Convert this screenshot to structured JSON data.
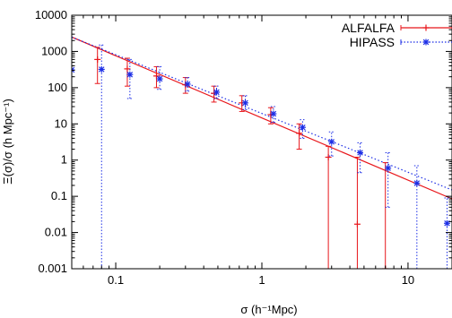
{
  "chart_data": {
    "type": "scatter",
    "title": "",
    "xlabel": "σ (h⁻¹Mpc)",
    "ylabel": "Ξ(σ)/σ (h Mpc⁻¹)",
    "xscale": "log",
    "yscale": "log",
    "xlim": [
      0.05,
      20
    ],
    "ylim": [
      0.001,
      10000
    ],
    "grid": false,
    "legend_position": "top-right",
    "x_tick_labels": [
      "0.1",
      "1",
      "10"
    ],
    "y_tick_labels": [
      "0.001",
      "0.01",
      "0.1",
      "1",
      "10",
      "100",
      "1000",
      "10000"
    ],
    "series": [
      {
        "name": "ALFALFA",
        "color": "#e8161b",
        "linestyle": "solid",
        "marker": "plus",
        "x": [
          0.075,
          0.12,
          0.19,
          0.3,
          0.47,
          0.73,
          1.15,
          1.8,
          2.85,
          4.5,
          7.0
        ],
        "y": [
          600,
          330,
          210,
          120,
          70,
          38,
          18,
          5.5,
          1.2,
          0.017,
          0.001
        ],
        "yerr_low": [
          130,
          110,
          100,
          70,
          40,
          22,
          10,
          2,
          0.001,
          0.001,
          0.001
        ],
        "yerr_high": [
          1300,
          650,
          380,
          190,
          110,
          60,
          28,
          10,
          2.4,
          1.2,
          0.85
        ]
      },
      {
        "name": "HIPASS",
        "color": "#1c2ee6",
        "linestyle": "dotted",
        "marker": "asterisk",
        "x": [
          0.05,
          0.08,
          0.125,
          0.2,
          0.31,
          0.49,
          0.77,
          1.2,
          1.9,
          3.0,
          4.7,
          7.3,
          11.5,
          18.5
        ],
        "y": [
          310,
          320,
          230,
          175,
          125,
          75,
          38,
          19,
          8,
          3.2,
          1.6,
          0.6,
          0.23,
          0.018
        ],
        "yerr_low": [
          0.001,
          0.001,
          50,
          90,
          80,
          50,
          25,
          11,
          4,
          1.3,
          0.45,
          0.05,
          0.001,
          0.001
        ],
        "yerr_high": [
          0,
          1500,
          600,
          380,
          190,
          110,
          60,
          30,
          13,
          6,
          3,
          1.6,
          0.7,
          0.09
        ]
      }
    ],
    "fits": [
      {
        "series": "ALFALFA",
        "color": "#e8161b",
        "linestyle": "solid",
        "x": [
          0.05,
          20
        ],
        "y": [
          2500,
          0.085
        ]
      },
      {
        "series": "HIPASS",
        "color": "#1c2ee6",
        "linestyle": "dotted",
        "x": [
          0.05,
          20
        ],
        "y": [
          2500,
          0.15
        ]
      }
    ]
  }
}
